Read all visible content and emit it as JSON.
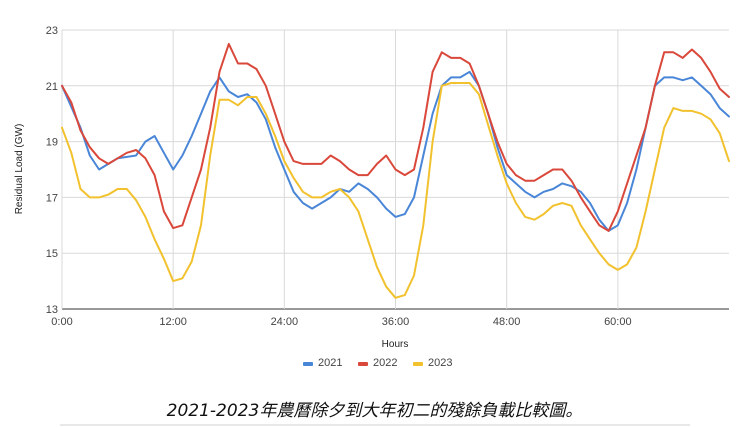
{
  "chart_data": {
    "type": "line",
    "xlabel": "Hours",
    "ylabel": "Residual Load (GW)",
    "ylim": [
      13,
      23
    ],
    "xlim": [
      0,
      72
    ],
    "y_ticks": [
      13,
      15,
      17,
      19,
      21,
      23
    ],
    "x_ticks": [
      {
        "value": 0,
        "label": "0:00"
      },
      {
        "value": 12,
        "label": "12:00"
      },
      {
        "value": 24,
        "label": "24:00"
      },
      {
        "value": 36,
        "label": "36:00"
      },
      {
        "value": 48,
        "label": "48:00"
      },
      {
        "value": 60,
        "label": "60:00"
      }
    ],
    "grid": true,
    "legend_position": "bottom",
    "series": [
      {
        "name": "2021",
        "color": "#4a86d8",
        "x": [
          0,
          2,
          3,
          4,
          5,
          6,
          8,
          9,
          10,
          11,
          12,
          13,
          14,
          15,
          16,
          17,
          18,
          19,
          20,
          21,
          22,
          23,
          24,
          25,
          26,
          27,
          28,
          29,
          30,
          31,
          32,
          33,
          34,
          35,
          36,
          37,
          38,
          39,
          40,
          41,
          42,
          43,
          44,
          45,
          46,
          47,
          48,
          49,
          50,
          51,
          52,
          53,
          54,
          55,
          56,
          57,
          58,
          59,
          60,
          61,
          62,
          63,
          64,
          65,
          66,
          67,
          68,
          69,
          70,
          71,
          72
        ],
        "y": [
          21.0,
          19.5,
          18.5,
          18.0,
          18.2,
          18.4,
          18.5,
          19.0,
          19.2,
          18.6,
          18.0,
          18.5,
          19.2,
          20.0,
          20.8,
          21.3,
          20.8,
          20.6,
          20.7,
          20.4,
          19.8,
          18.8,
          18.0,
          17.2,
          16.8,
          16.6,
          16.8,
          17.0,
          17.3,
          17.2,
          17.5,
          17.3,
          17.0,
          16.6,
          16.3,
          16.4,
          17.0,
          18.5,
          20.0,
          21.0,
          21.3,
          21.3,
          21.5,
          21.0,
          20.0,
          18.8,
          17.8,
          17.5,
          17.2,
          17.0,
          17.2,
          17.3,
          17.5,
          17.4,
          17.2,
          16.8,
          16.2,
          15.8,
          16.0,
          16.8,
          18.0,
          19.5,
          21.0,
          21.3,
          21.3,
          21.2,
          21.3,
          21.0,
          20.7,
          20.2,
          19.9
        ]
      },
      {
        "name": "2022",
        "color": "#d9483b",
        "x": [
          0,
          1,
          2,
          3,
          4,
          5,
          6,
          7,
          8,
          9,
          10,
          11,
          12,
          13,
          14,
          15,
          16,
          17,
          18,
          19,
          20,
          21,
          22,
          23,
          24,
          25,
          26,
          27,
          28,
          29,
          30,
          31,
          32,
          33,
          34,
          35,
          36,
          37,
          38,
          39,
          40,
          41,
          42,
          43,
          44,
          45,
          46,
          47,
          48,
          49,
          50,
          51,
          52,
          53,
          54,
          55,
          56,
          57,
          58,
          59,
          60,
          61,
          62,
          63,
          64,
          65,
          66,
          67,
          68,
          69,
          70,
          71,
          72
        ],
        "y": [
          21.0,
          20.4,
          19.4,
          18.8,
          18.4,
          18.2,
          18.4,
          18.6,
          18.7,
          18.4,
          17.8,
          16.5,
          15.9,
          16.0,
          17.0,
          18.0,
          19.5,
          21.5,
          22.5,
          21.8,
          21.8,
          21.6,
          21.0,
          20.0,
          19.0,
          18.3,
          18.2,
          18.2,
          18.2,
          18.5,
          18.3,
          18.0,
          17.8,
          17.8,
          18.2,
          18.5,
          18.0,
          17.8,
          18.0,
          19.5,
          21.5,
          22.2,
          22.0,
          22.0,
          21.8,
          21.0,
          20.0,
          19.0,
          18.2,
          17.8,
          17.6,
          17.6,
          17.8,
          18.0,
          18.0,
          17.6,
          17.0,
          16.5,
          16.0,
          15.8,
          16.5,
          17.5,
          18.5,
          19.5,
          21.0,
          22.2,
          22.2,
          22.0,
          22.3,
          22.0,
          21.5,
          20.9,
          20.6
        ]
      },
      {
        "name": "2023",
        "color": "#f2c12e",
        "x": [
          0,
          1,
          2,
          3,
          4,
          5,
          6,
          7,
          8,
          9,
          10,
          11,
          12,
          13,
          14,
          15,
          16,
          17,
          18,
          19,
          20,
          21,
          22,
          23,
          24,
          25,
          26,
          27,
          28,
          29,
          30,
          31,
          32,
          33,
          34,
          35,
          36,
          37,
          38,
          39,
          40,
          41,
          42,
          43,
          44,
          45,
          46,
          47,
          48,
          49,
          50,
          51,
          52,
          53,
          54,
          55,
          56,
          57,
          58,
          59,
          60,
          61,
          62,
          63,
          64,
          65,
          66,
          67,
          68,
          69,
          70,
          71,
          72
        ],
        "y": [
          19.5,
          18.6,
          17.3,
          17.0,
          17.0,
          17.1,
          17.3,
          17.3,
          16.9,
          16.3,
          15.5,
          14.8,
          14.0,
          14.1,
          14.7,
          16.0,
          18.5,
          20.5,
          20.5,
          20.3,
          20.6,
          20.6,
          20.0,
          19.2,
          18.3,
          17.7,
          17.2,
          17.0,
          17.0,
          17.2,
          17.3,
          17.0,
          16.5,
          15.5,
          14.5,
          13.8,
          13.4,
          13.5,
          14.2,
          16.0,
          19.0,
          21.0,
          21.1,
          21.1,
          21.1,
          20.7,
          19.6,
          18.5,
          17.5,
          16.8,
          16.3,
          16.2,
          16.4,
          16.7,
          16.8,
          16.7,
          16.0,
          15.5,
          15.0,
          14.6,
          14.4,
          14.6,
          15.2,
          16.5,
          18.0,
          19.5,
          20.2,
          20.1,
          20.1,
          20.0,
          19.8,
          19.3,
          18.3
        ]
      }
    ]
  },
  "caption": "2021-2023年農曆除夕到大年初二的殘餘負載比較圖。"
}
